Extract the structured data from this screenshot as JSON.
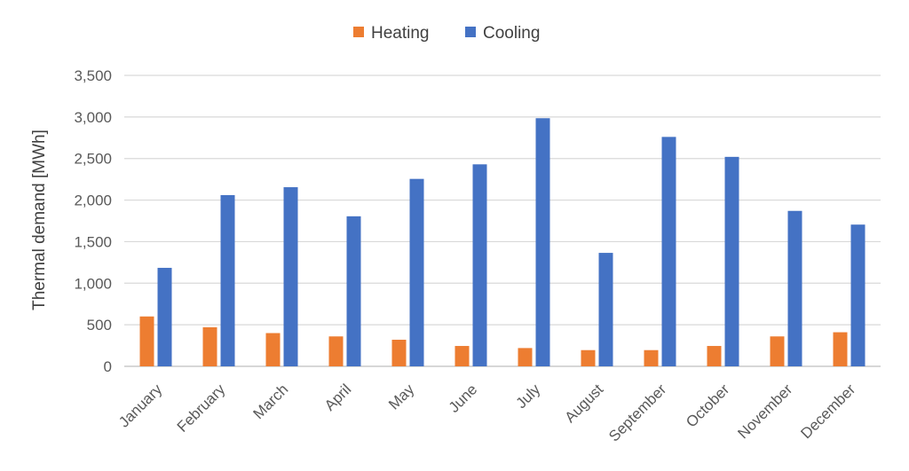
{
  "chart_data": {
    "type": "bar",
    "title": "",
    "xlabel": "",
    "ylabel": "Thermal demand [MWh]",
    "ylim": [
      0,
      3500
    ],
    "ytick_step": 500,
    "y_tick_labels": [
      "0",
      "500",
      "1,000",
      "1,500",
      "2,000",
      "2,500",
      "3,000",
      "3,500"
    ],
    "grid": "horizontal",
    "legend_position": "top",
    "categories": [
      "January",
      "February",
      "March",
      "April",
      "May",
      "June",
      "July",
      "August",
      "September",
      "October",
      "November",
      "December"
    ],
    "series": [
      {
        "name": "Heating",
        "color": "#ED7D31",
        "values": [
          600,
          470,
          400,
          360,
          320,
          245,
          220,
          195,
          195,
          245,
          360,
          410
        ]
      },
      {
        "name": "Cooling",
        "color": "#4472C4",
        "values": [
          1185,
          2060,
          2155,
          1805,
          2255,
          2430,
          2985,
          1365,
          2760,
          2520,
          1870,
          1705
        ]
      }
    ]
  }
}
